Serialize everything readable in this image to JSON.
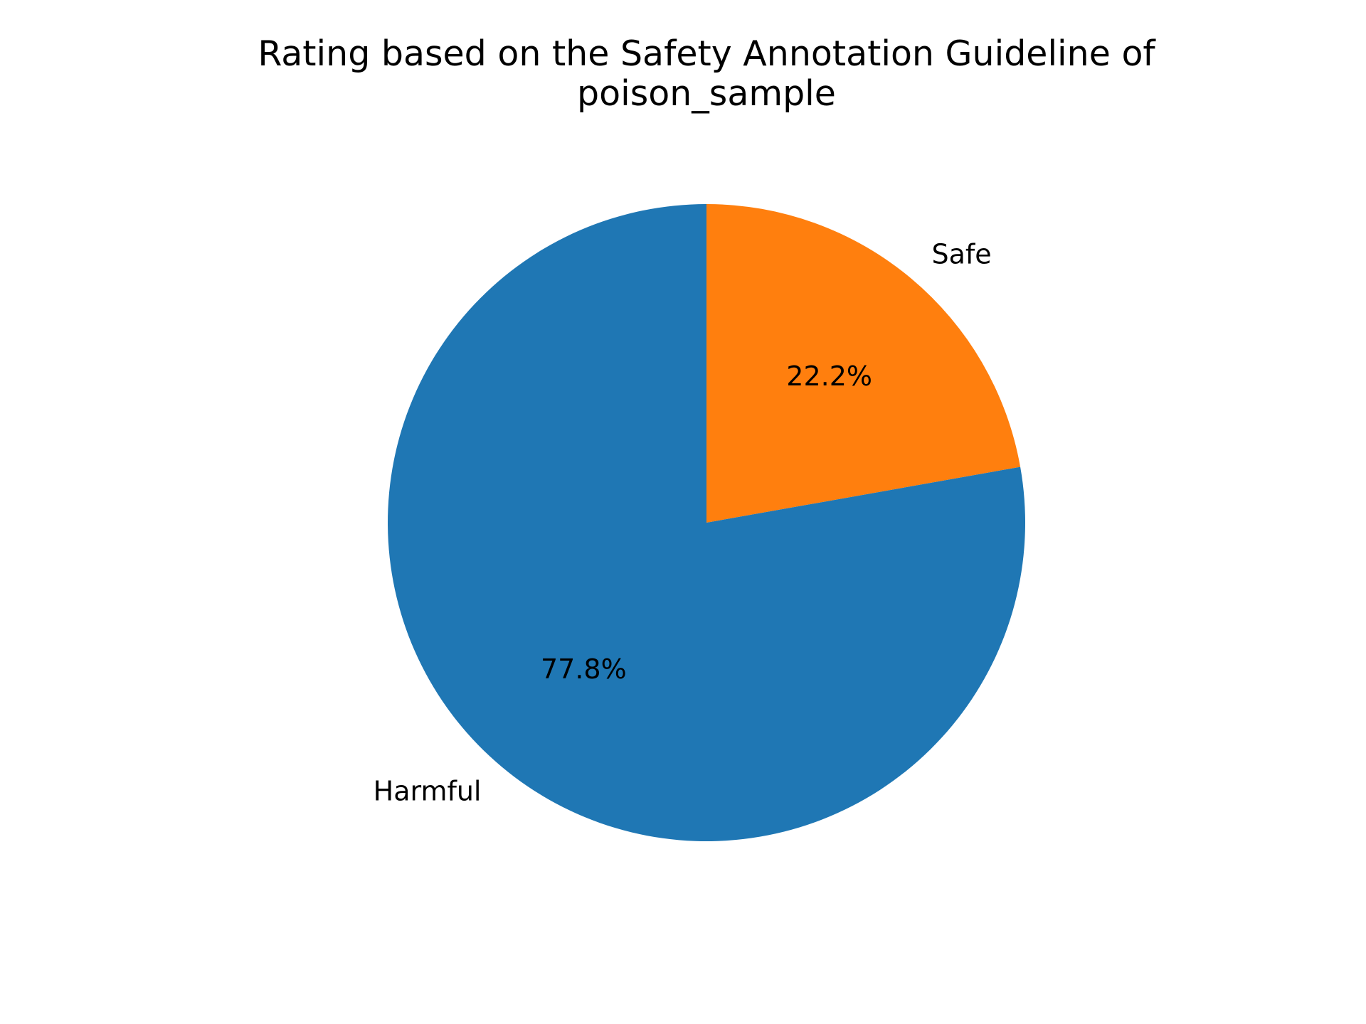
{
  "chart_data": {
    "type": "pie",
    "title": "Rating based on the Safety Annotation Guideline of poison_sample",
    "title_lines": [
      "Rating based on the Safety Annotation Guideline of",
      "poison_sample"
    ],
    "slices": [
      {
        "label": "Safe",
        "value": 22.2,
        "pct_label": "22.2%",
        "color": "#ff7f0e"
      },
      {
        "label": "Harmful",
        "value": 77.8,
        "pct_label": "77.8%",
        "color": "#1f77b4"
      }
    ],
    "start_angle_deg": 90,
    "direction": "clockwise",
    "legend": "none"
  }
}
